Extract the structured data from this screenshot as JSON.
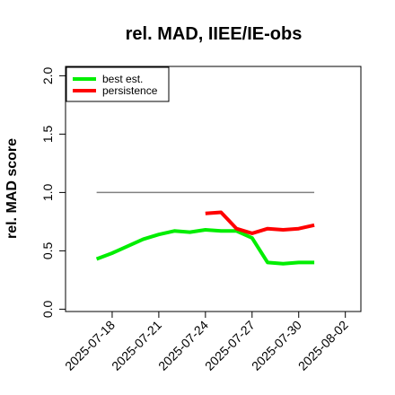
{
  "chart_data": {
    "type": "line",
    "title": "rel. MAD, IIEE/IE-obs",
    "xlabel": "",
    "ylabel": "rel. MAD score",
    "x_ticks": [
      "2025-07-18",
      "2025-07-21",
      "2025-07-24",
      "2025-07-27",
      "2025-07-30",
      "2025-08-02"
    ],
    "xlim": [
      "2025-07-15",
      "2025-08-03"
    ],
    "ylim": [
      -0.02,
      2.08
    ],
    "y_ticks": [
      "0.0",
      "0.5",
      "1.0",
      "1.5",
      "2.0"
    ],
    "grid": false,
    "legend_position": "top-left",
    "reference_line": {
      "y": 1.0,
      "x_start": "2025-07-17",
      "x_end": "2025-07-31",
      "color": "#808080"
    },
    "series": [
      {
        "name": "best est.",
        "color": "#00ee00",
        "points": [
          [
            "2025-07-17",
            0.43
          ],
          [
            "2025-07-18",
            0.48
          ],
          [
            "2025-07-19",
            0.54
          ],
          [
            "2025-07-20",
            0.6
          ],
          [
            "2025-07-21",
            0.64
          ],
          [
            "2025-07-22",
            0.67
          ],
          [
            "2025-07-23",
            0.66
          ],
          [
            "2025-07-24",
            0.68
          ],
          [
            "2025-07-25",
            0.67
          ],
          [
            "2025-07-26",
            0.67
          ],
          [
            "2025-07-27",
            0.61
          ],
          [
            "2025-07-28",
            0.4
          ],
          [
            "2025-07-29",
            0.39
          ],
          [
            "2025-07-30",
            0.4
          ],
          [
            "2025-07-31",
            0.4
          ]
        ]
      },
      {
        "name": "persistence",
        "color": "#ff0000",
        "points": [
          [
            "2025-07-24",
            0.82
          ],
          [
            "2025-07-25",
            0.83
          ],
          [
            "2025-07-26",
            0.69
          ],
          [
            "2025-07-27",
            0.65
          ],
          [
            "2025-07-28",
            0.69
          ],
          [
            "2025-07-29",
            0.68
          ],
          [
            "2025-07-30",
            0.69
          ],
          [
            "2025-07-31",
            0.72
          ]
        ]
      }
    ]
  }
}
